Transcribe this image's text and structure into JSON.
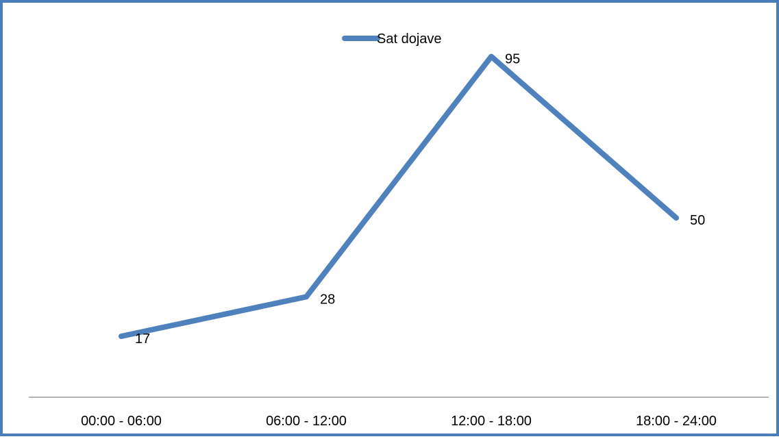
{
  "chart_data": {
    "type": "line",
    "categories": [
      "00:00 - 06:00",
      "06:00 - 12:00",
      "12:00 - 18:00",
      "18:00 - 24:00"
    ],
    "series": [
      {
        "name": "Sat dojave",
        "values": [
          17,
          28,
          95,
          50
        ],
        "color": "#4f81bd"
      }
    ],
    "data_labels": [
      "17",
      "28",
      "95",
      "50"
    ],
    "title": "",
    "xlabel": "",
    "ylabel": "",
    "ylim": [
      0,
      110
    ],
    "grid": false,
    "y_axis_visible": false,
    "legend_position": "top-center"
  },
  "colors": {
    "border": "#4a7ebb",
    "series": "#4f81bd",
    "axis": "#868686"
  }
}
